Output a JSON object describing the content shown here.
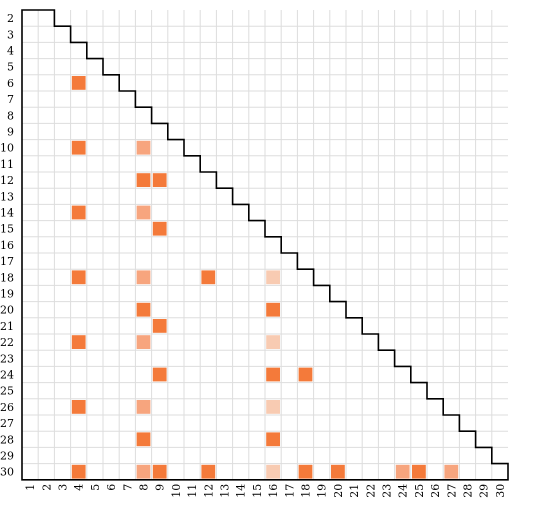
{
  "chart_data": {
    "type": "heatmap",
    "title": "",
    "xlabel": "",
    "ylabel": "",
    "x_labels": [
      "1",
      "2",
      "3",
      "4",
      "5",
      "6",
      "7",
      "8",
      "9",
      "10",
      "11",
      "12",
      "13",
      "14",
      "15",
      "16",
      "17",
      "18",
      "19",
      "20",
      "21",
      "22",
      "23",
      "24",
      "25",
      "26",
      "27",
      "28",
      "29",
      "30"
    ],
    "y_labels": [
      "2",
      "3",
      "4",
      "5",
      "6",
      "7",
      "8",
      "9",
      "10",
      "11",
      "12",
      "13",
      "14",
      "15",
      "16",
      "17",
      "18",
      "19",
      "20",
      "21",
      "22",
      "23",
      "24",
      "25",
      "26",
      "27",
      "28",
      "29",
      "30"
    ],
    "layout": "lower-triangular",
    "grid": true,
    "colors": {
      "strong": "#f47a3a",
      "medium": "#f7a57e",
      "light": "#f8cbb2",
      "grid": "#dddddd",
      "outline": "#000000"
    },
    "cells": [
      {
        "row": "6",
        "col": "4",
        "level": "strong"
      },
      {
        "row": "10",
        "col": "4",
        "level": "strong"
      },
      {
        "row": "10",
        "col": "8",
        "level": "medium"
      },
      {
        "row": "12",
        "col": "8",
        "level": "strong"
      },
      {
        "row": "12",
        "col": "9",
        "level": "strong"
      },
      {
        "row": "14",
        "col": "4",
        "level": "strong"
      },
      {
        "row": "14",
        "col": "8",
        "level": "medium"
      },
      {
        "row": "15",
        "col": "9",
        "level": "strong"
      },
      {
        "row": "18",
        "col": "4",
        "level": "strong"
      },
      {
        "row": "18",
        "col": "8",
        "level": "medium"
      },
      {
        "row": "18",
        "col": "12",
        "level": "strong"
      },
      {
        "row": "18",
        "col": "16",
        "level": "light"
      },
      {
        "row": "20",
        "col": "8",
        "level": "strong"
      },
      {
        "row": "20",
        "col": "16",
        "level": "strong"
      },
      {
        "row": "21",
        "col": "9",
        "level": "strong"
      },
      {
        "row": "22",
        "col": "4",
        "level": "strong"
      },
      {
        "row": "22",
        "col": "8",
        "level": "medium"
      },
      {
        "row": "22",
        "col": "16",
        "level": "light"
      },
      {
        "row": "24",
        "col": "9",
        "level": "strong"
      },
      {
        "row": "24",
        "col": "16",
        "level": "strong"
      },
      {
        "row": "24",
        "col": "18",
        "level": "strong"
      },
      {
        "row": "26",
        "col": "4",
        "level": "strong"
      },
      {
        "row": "26",
        "col": "8",
        "level": "medium"
      },
      {
        "row": "26",
        "col": "16",
        "level": "light"
      },
      {
        "row": "28",
        "col": "8",
        "level": "strong"
      },
      {
        "row": "28",
        "col": "16",
        "level": "strong"
      },
      {
        "row": "30",
        "col": "4",
        "level": "strong"
      },
      {
        "row": "30",
        "col": "8",
        "level": "medium"
      },
      {
        "row": "30",
        "col": "9",
        "level": "strong"
      },
      {
        "row": "30",
        "col": "12",
        "level": "strong"
      },
      {
        "row": "30",
        "col": "16",
        "level": "light"
      },
      {
        "row": "30",
        "col": "18",
        "level": "strong"
      },
      {
        "row": "30",
        "col": "20",
        "level": "strong"
      },
      {
        "row": "30",
        "col": "24",
        "level": "medium"
      },
      {
        "row": "30",
        "col": "25",
        "level": "strong"
      },
      {
        "row": "30",
        "col": "27",
        "level": "medium"
      }
    ]
  }
}
